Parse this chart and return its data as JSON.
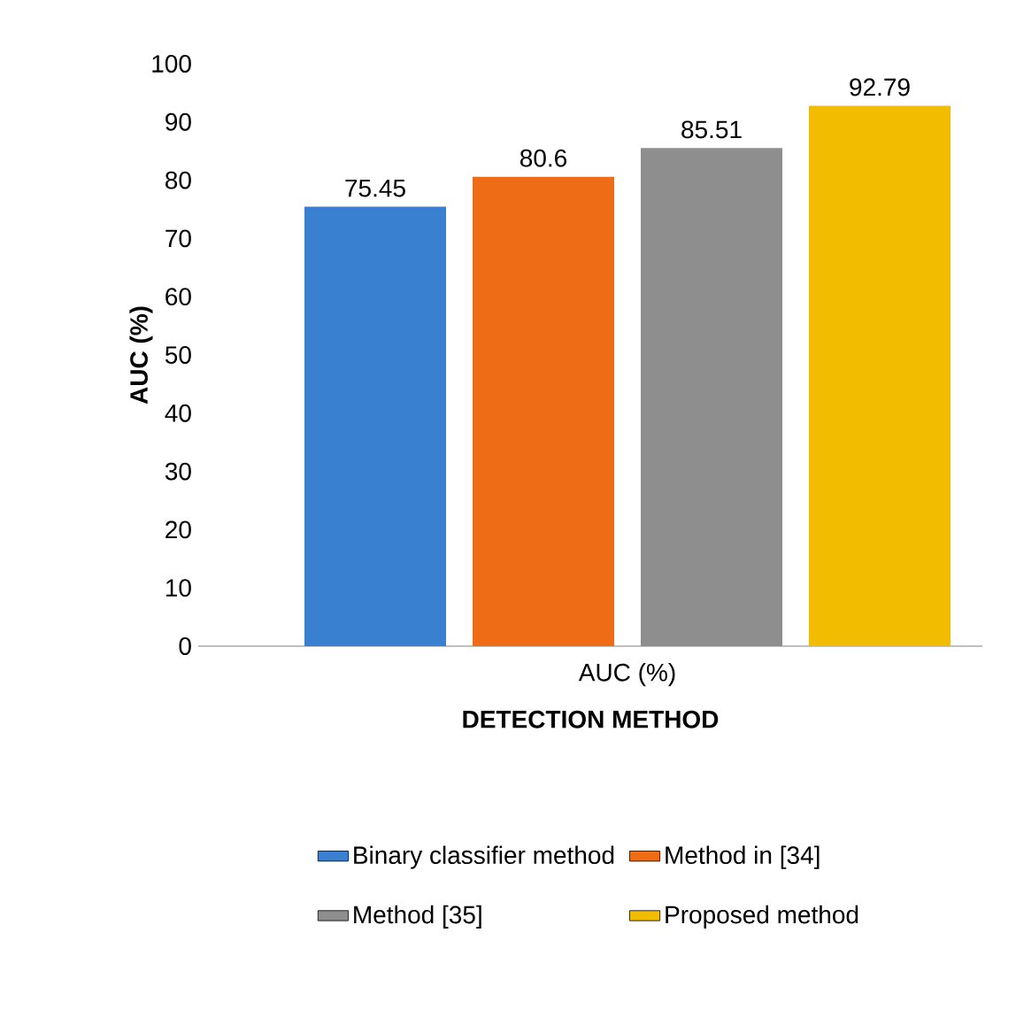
{
  "chart_data": {
    "type": "bar",
    "xlabel": "DETECTION METHOD",
    "ylabel": "AUC (%)",
    "categories": [
      null,
      null,
      null,
      null
    ],
    "annotations": [
      "AUC (%)"
    ],
    "series": [
      {
        "name": "Binary classifier method",
        "color": "#3a80d0",
        "values": [
          75.45,
          null,
          null,
          null
        ]
      },
      {
        "name": "Method in [34]",
        "color": "#ee6c16",
        "values": [
          null,
          80.6,
          null,
          null
        ]
      },
      {
        "name": "Method [35]",
        "color": "#8e8e8e",
        "values": [
          null,
          null,
          85.51,
          null
        ]
      },
      {
        "name": "Proposed method",
        "color": "#f2bc00",
        "values": [
          null,
          null,
          null,
          92.79
        ]
      }
    ],
    "data_labels": true,
    "ylim": [
      0,
      100
    ],
    "yticks": [
      0,
      10,
      20,
      30,
      40,
      50,
      60,
      70,
      80,
      90,
      100
    ],
    "grid": false,
    "legend": "bottom"
  }
}
